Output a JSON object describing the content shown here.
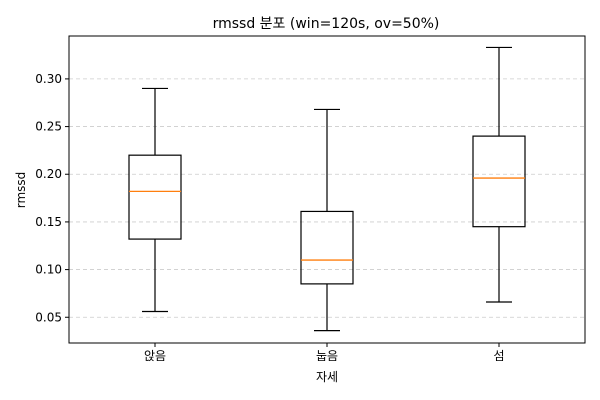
{
  "chart_data": {
    "type": "box",
    "title": "rmssd 분포 (win=120s, ov=50%)",
    "xlabel": "자세",
    "ylabel": "rmssd",
    "categories": [
      "앉음",
      "눕음",
      "섬"
    ],
    "boxes": [
      {
        "whisker_low": 0.056,
        "q1": 0.132,
        "median": 0.182,
        "q3": 0.22,
        "whisker_high": 0.29
      },
      {
        "whisker_low": 0.036,
        "q1": 0.085,
        "median": 0.11,
        "q3": 0.161,
        "whisker_high": 0.268
      },
      {
        "whisker_low": 0.066,
        "q1": 0.145,
        "median": 0.196,
        "q3": 0.24,
        "whisker_high": 0.333
      }
    ],
    "ylim": [
      0.023,
      0.345
    ],
    "yticks": [
      "0.05",
      "0.10",
      "0.15",
      "0.20",
      "0.25",
      "0.30"
    ],
    "grid": "y-dashed",
    "colors": {
      "box": "#000000",
      "median": "#ff7f0e",
      "grid": "#cccccc"
    }
  }
}
